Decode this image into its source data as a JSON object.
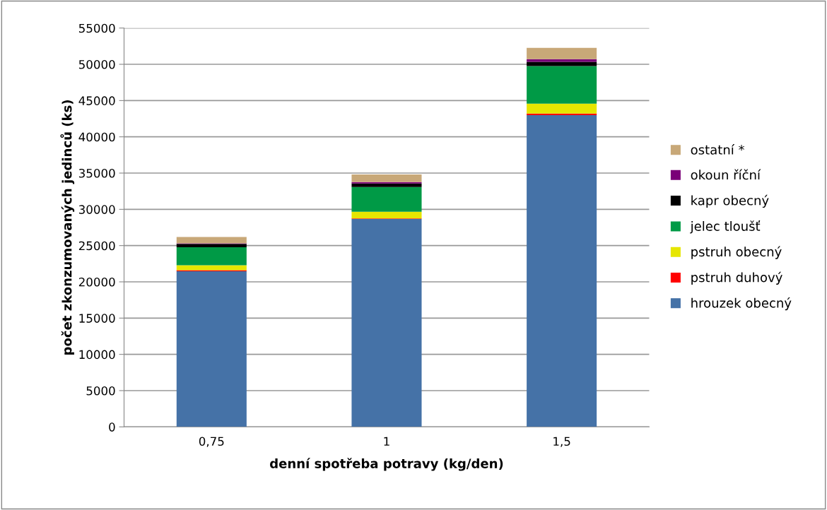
{
  "chart_data": {
    "type": "bar",
    "stacked": true,
    "xlabel": "denní spotřeba potravy (kg/den)",
    "ylabel": "počet zkonzumovaných jedinců (ks)",
    "categories": [
      "0,75",
      "1",
      "1,5"
    ],
    "series": [
      {
        "name": "hrouzek obecný",
        "color": "#4572a7",
        "values": [
          21470,
          28680,
          42980
        ]
      },
      {
        "name": "pstruh duhový",
        "color": "#ff0000",
        "values": [
          130,
          70,
          230
        ]
      },
      {
        "name": "pstruh obecný",
        "color": "#e6e600",
        "values": [
          680,
          910,
          1360
        ]
      },
      {
        "name": "jelec tloušť",
        "color": "#009a46",
        "values": [
          2505,
          3410,
          5200
        ]
      },
      {
        "name": "kapr obecný",
        "color": "#000000",
        "values": [
          455,
          490,
          580
        ]
      },
      {
        "name": "okoun říční",
        "color": "#7a0078",
        "values": [
          80,
          190,
          360
        ]
      },
      {
        "name": "ostatní *",
        "color": "#c8a878",
        "values": [
          860,
          1050,
          1560
        ]
      }
    ],
    "ylim": [
      0,
      55000
    ],
    "yticks": [
      0,
      5000,
      10000,
      15000,
      20000,
      25000,
      30000,
      35000,
      40000,
      45000,
      50000,
      55000
    ],
    "grid": "y",
    "legend": "right"
  }
}
